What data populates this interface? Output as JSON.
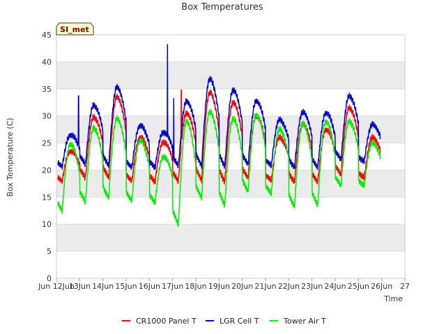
{
  "chart_data": {
    "type": "line",
    "title": "Box Temperatures",
    "xlabel": "Time",
    "ylabel": "Box Temperature (C)",
    "station_tag": "SI_met",
    "xlim": [
      12,
      27
    ],
    "ylim": [
      0,
      45
    ],
    "x_ticks": [
      12,
      13,
      14,
      15,
      16,
      17,
      18,
      19,
      20,
      21,
      22,
      23,
      24,
      25,
      26,
      27
    ],
    "x_tick_labels": [
      "Jun 12Jun",
      "13Jun",
      "14Jun",
      "15Jun",
      "16Jun",
      "17Jun",
      "18Jun",
      "19Jun",
      "20Jun",
      "21Jun",
      "22Jun",
      "23Jun",
      "24Jun",
      "25Jun",
      "26Jun",
      "27"
    ],
    "y_ticks": [
      0,
      5,
      10,
      15,
      20,
      25,
      30,
      35,
      40,
      45
    ],
    "legend_position": "bottom",
    "colors": {
      "panel_bg": "#ffffff",
      "band": "#ebebeb",
      "grid": "#dddddd"
    },
    "series": [
      {
        "name": "CR1000 Panel T",
        "color": "#ff0000",
        "daily_params": [
          [
            18.0,
            23.5
          ],
          [
            18.5,
            29.8
          ],
          [
            18.5,
            33.5
          ],
          [
            18.0,
            26.0
          ],
          [
            17.8,
            25.2
          ],
          [
            17.8,
            30.5
          ],
          [
            18.0,
            34.3
          ],
          [
            17.8,
            32.5
          ],
          [
            18.5,
            30.0
          ],
          [
            18.0,
            26.0
          ],
          [
            17.8,
            28.5
          ],
          [
            17.8,
            27.5
          ],
          [
            19.0,
            31.5
          ],
          [
            18.5,
            26.0
          ]
        ],
        "spikes": [
          [
            17.38,
            34.8
          ]
        ]
      },
      {
        "name": "LGR Cell T",
        "color": "#0000cc",
        "daily_params": [
          [
            20.7,
            26.5
          ],
          [
            21.0,
            32.0
          ],
          [
            20.7,
            35.3
          ],
          [
            20.5,
            28.2
          ],
          [
            20.5,
            27.0
          ],
          [
            20.7,
            32.7
          ],
          [
            20.7,
            36.8
          ],
          [
            20.7,
            34.8
          ],
          [
            21.0,
            32.8
          ],
          [
            20.7,
            29.3
          ],
          [
            20.5,
            30.7
          ],
          [
            20.5,
            30.6
          ],
          [
            21.8,
            33.7
          ],
          [
            21.5,
            28.4
          ]
        ],
        "spikes": [
          [
            12.95,
            33.7
          ],
          [
            16.78,
            43.2
          ],
          [
            17.05,
            33.2
          ]
        ]
      },
      {
        "name": "Tower Air T",
        "color": "#00ee00",
        "daily_params": [
          [
            12.5,
            24.8
          ],
          [
            14.0,
            27.8
          ],
          [
            14.8,
            29.5
          ],
          [
            14.3,
            25.5
          ],
          [
            14.0,
            22.5
          ],
          [
            9.8,
            29.0
          ],
          [
            14.8,
            30.7
          ],
          [
            13.5,
            29.5
          ],
          [
            16.0,
            30.2
          ],
          [
            15.5,
            27.5
          ],
          [
            13.2,
            28.5
          ],
          [
            13.5,
            29.0
          ],
          [
            17.0,
            29.0
          ],
          [
            17.0,
            25.0
          ]
        ],
        "spikes": []
      }
    ]
  }
}
